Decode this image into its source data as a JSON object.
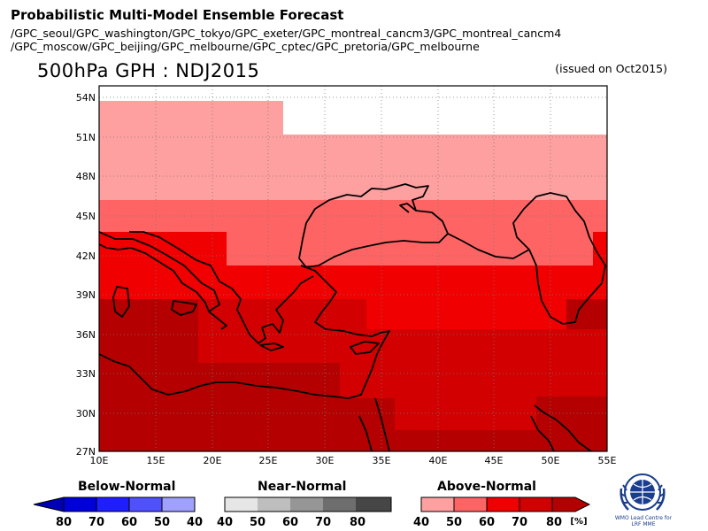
{
  "header": {
    "title": "Probabilistic Multi-Model Ensemble Forecast",
    "models_line1": "/GPC_seoul/GPC_washington/GPC_tokyo/GPC_exeter/GPC_montreal_cancm3/GPC_montreal_cancm4",
    "models_line2": "/GPC_moscow/GPC_beijing/GPC_melbourne/GPC_cptec/GPC_pretoria/GPC_melbourne"
  },
  "map": {
    "title": "500hPa GPH : NDJ2015",
    "issued": "(issued on Oct2015)",
    "lat_labels": [
      "54N",
      "51N",
      "48N",
      "45N",
      "42N",
      "39N",
      "36N",
      "33N",
      "30N",
      "27N"
    ],
    "lon_labels": [
      "10E",
      "15E",
      "20E",
      "25E",
      "30E",
      "35E",
      "40E",
      "45E",
      "50E",
      "55E"
    ]
  },
  "legend": {
    "below": {
      "title": "Below-Normal",
      "labels": [
        "80",
        "70",
        "60",
        "50",
        "40"
      ],
      "colors": [
        "#0000b4",
        "#0000dc",
        "#1e1eff",
        "#5050ff",
        "#a0a0ff"
      ]
    },
    "near": {
      "title": "Near-Normal",
      "labels": [
        "40",
        "50",
        "60",
        "70",
        "80"
      ],
      "colors": [
        "#e6e6e6",
        "#bebebe",
        "#969696",
        "#6e6e6e",
        "#464646"
      ]
    },
    "above": {
      "title": "Above-Normal",
      "labels": [
        "40",
        "50",
        "60",
        "70",
        "80"
      ],
      "unit": "[%]",
      "colors": [
        "#ffa0a0",
        "#ff6464",
        "#f00000",
        "#d20000",
        "#b40000"
      ]
    }
  },
  "logo": {
    "line1": "WMO Lead Centre for",
    "line2": "LRF MME"
  }
}
